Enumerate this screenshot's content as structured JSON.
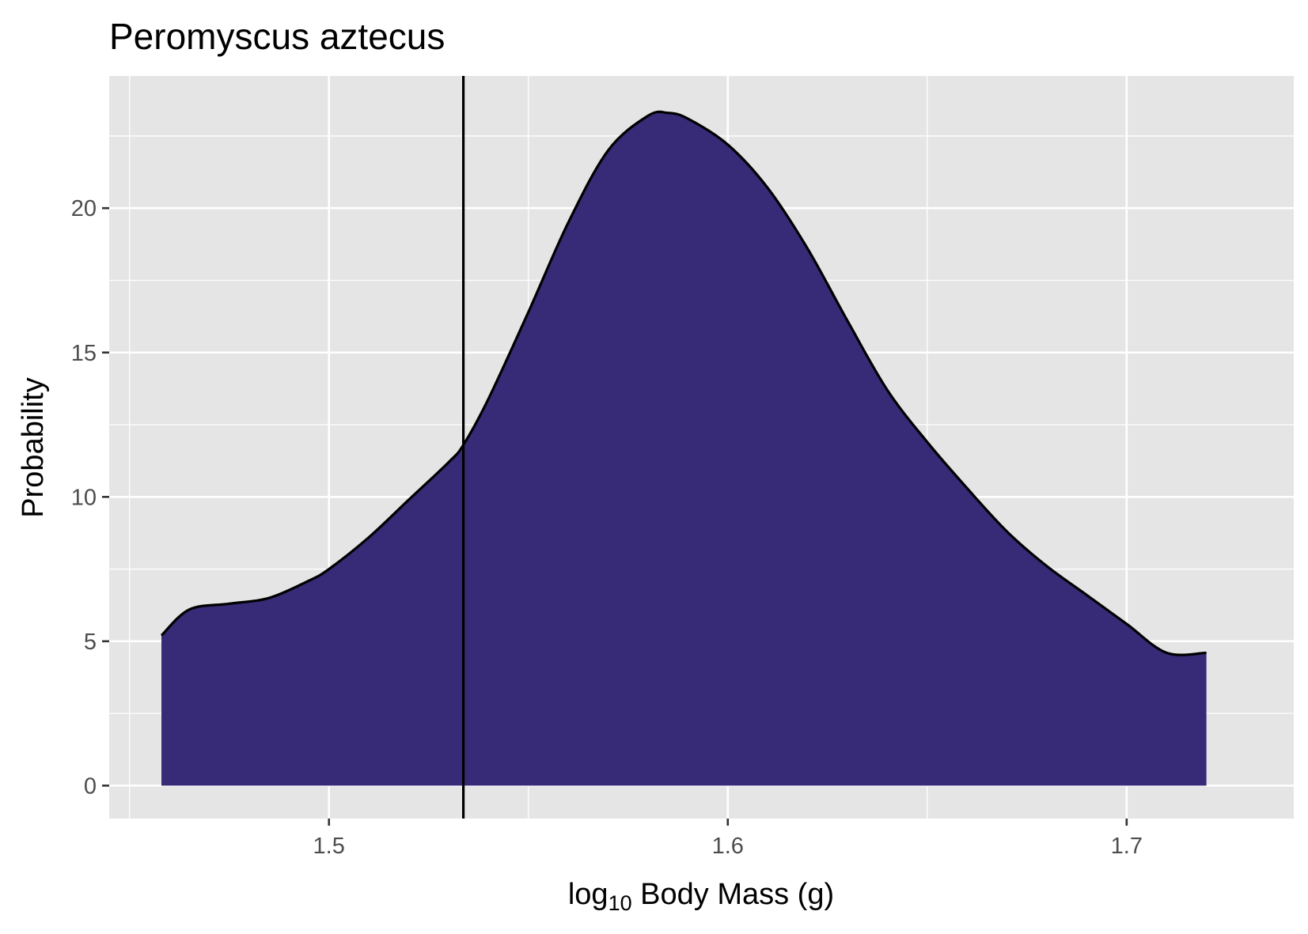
{
  "chart_data": {
    "type": "area",
    "title": "Peromyscus aztecus",
    "xlabel": {
      "prefix": "log",
      "subscript": "10",
      "suffix": " Body Mass (g)"
    },
    "ylabel": "Probability",
    "xlim": [
      1.4449,
      1.7419
    ],
    "ylim": [
      -1.14,
      24.58
    ],
    "x_ticks": [
      1.5,
      1.6,
      1.7
    ],
    "x_tick_labels": [
      "1.5",
      "1.6",
      "1.7"
    ],
    "x_minor_ticks": [
      1.45,
      1.55,
      1.65
    ],
    "y_ticks": [
      0,
      5,
      10,
      15,
      20
    ],
    "y_tick_labels": [
      "0",
      "5",
      "10",
      "15",
      "20"
    ],
    "y_minor_ticks": [
      2.5,
      7.5,
      12.5,
      17.5,
      22.5
    ],
    "grid": true,
    "reference_line_x": 1.5337,
    "fill_color": "#372A77",
    "line_color": "#000000",
    "panel_color": "#E5E5E5",
    "gridline_color": "#FFFFFF",
    "series": [
      {
        "x": [
          1.458,
          1.465,
          1.475,
          1.485,
          1.495,
          1.5,
          1.51,
          1.52,
          1.53,
          1.5337,
          1.54,
          1.55,
          1.56,
          1.57,
          1.58,
          1.585,
          1.59,
          1.6,
          1.61,
          1.62,
          1.63,
          1.64,
          1.65,
          1.66,
          1.67,
          1.68,
          1.69,
          1.7,
          1.71,
          1.72
        ],
        "y": [
          5.2,
          6.1,
          6.3,
          6.5,
          7.1,
          7.5,
          8.6,
          9.9,
          11.2,
          11.8,
          13.4,
          16.4,
          19.5,
          22.0,
          23.2,
          23.3,
          23.1,
          22.2,
          20.7,
          18.6,
          16.1,
          13.7,
          11.9,
          10.3,
          8.8,
          7.6,
          6.6,
          5.6,
          4.6,
          4.6
        ]
      }
    ]
  }
}
